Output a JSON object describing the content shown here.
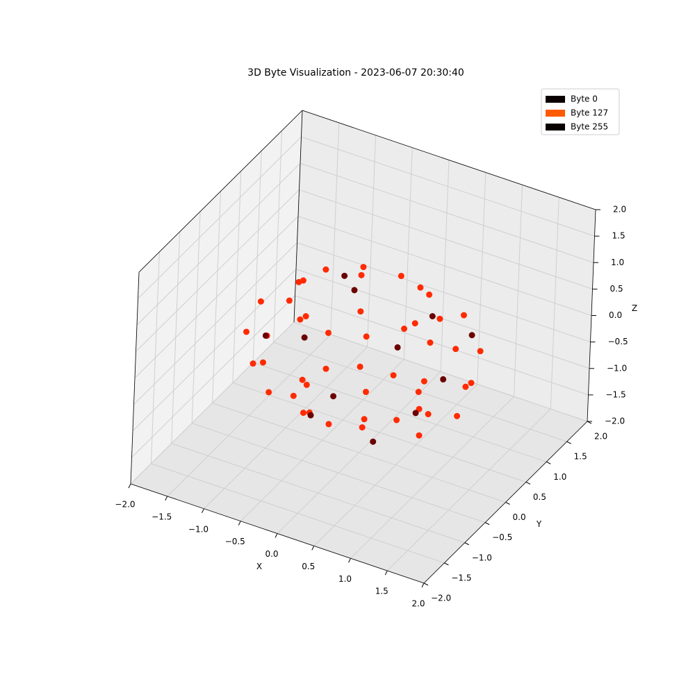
{
  "chart_data": {
    "type": "scatter3d",
    "title": "3D Byte Visualization - 2023-06-07 20:30:40",
    "x_label": "X",
    "y_label": "Y",
    "z_label": "Z",
    "xlim": [
      -2,
      2
    ],
    "ylim": [
      -2,
      2
    ],
    "zlim": [
      -2,
      2
    ],
    "xticks": [
      {
        "value": -2,
        "label": "−2.0"
      },
      {
        "value": -1.5,
        "label": "−1.5"
      },
      {
        "value": -1,
        "label": "−1.0"
      },
      {
        "value": -0.5,
        "label": "−0.5"
      },
      {
        "value": 0,
        "label": "0.0"
      },
      {
        "value": 0.5,
        "label": "0.5"
      },
      {
        "value": 1,
        "label": "1.0"
      },
      {
        "value": 1.5,
        "label": "1.5"
      },
      {
        "value": 2,
        "label": "2.0"
      }
    ],
    "yticks": [
      {
        "value": -2,
        "label": "−2.0"
      },
      {
        "value": -1.5,
        "label": "−1.5"
      },
      {
        "value": -1,
        "label": "−1.0"
      },
      {
        "value": -0.5,
        "label": "−0.5"
      },
      {
        "value": 0,
        "label": "0.0"
      },
      {
        "value": 0.5,
        "label": "0.5"
      },
      {
        "value": 1,
        "label": "1.0"
      },
      {
        "value": 1.5,
        "label": "1.5"
      },
      {
        "value": 2,
        "label": "2.0"
      }
    ],
    "zticks": [
      {
        "value": -2,
        "label": "−2.0"
      },
      {
        "value": -1.5,
        "label": "−1.5"
      },
      {
        "value": -1,
        "label": "−1.0"
      },
      {
        "value": -0.5,
        "label": "−0.5"
      },
      {
        "value": 0,
        "label": "0.0"
      },
      {
        "value": 0.5,
        "label": "0.5"
      },
      {
        "value": 1,
        "label": "1.0"
      },
      {
        "value": 1.5,
        "label": "1.5"
      },
      {
        "value": 2,
        "label": "2.0"
      }
    ],
    "grid": true,
    "legend_loc": "upper right",
    "legend": [
      {
        "label": "Byte 0",
        "color": "#0a0000"
      },
      {
        "label": "Byte 127",
        "color": "#ff5a00"
      },
      {
        "label": "Byte 255",
        "color": "#0a0000"
      }
    ],
    "groups": [
      {
        "color": "#ff2a00",
        "x": [
          0.8,
          0.7,
          0.4,
          0,
          -0.4,
          -0.7,
          -0.8,
          -0.7,
          -0.4,
          0,
          0.4,
          0.7,
          1.3,
          1.13,
          0.65,
          0,
          -0.65,
          -1.13,
          -1.3,
          -1.13,
          -0.65,
          0,
          0.65,
          1.13,
          1.4,
          1.21,
          0.7,
          0,
          -0.7,
          -1.21,
          -1.4,
          -1.21,
          -0.7,
          0,
          0.7,
          1.21,
          0.9,
          0.78,
          0.45,
          0,
          -0.45,
          -0.78,
          -0.9,
          -0.78,
          -0.45,
          0,
          0.45,
          0.78
        ],
        "y": [
          0,
          0.4,
          0.7,
          0.8,
          0.7,
          0.4,
          0,
          -0.4,
          -0.7,
          -0.8,
          -0.7,
          -0.4,
          0,
          0.65,
          1.13,
          1.3,
          1.13,
          0.65,
          0,
          -0.65,
          -1.13,
          -1.3,
          -1.13,
          -0.65,
          0,
          0.7,
          1.21,
          1.4,
          1.21,
          0.7,
          0,
          -0.7,
          -1.21,
          -1.4,
          -1.21,
          -0.7,
          0,
          0.45,
          0.78,
          0.9,
          0.78,
          0.45,
          0,
          -0.45,
          -0.78,
          -0.9,
          -0.78,
          -0.45
        ],
        "z": [
          -1.3,
          -1.25,
          -1.2,
          -1.15,
          -1.1,
          -1.05,
          -1,
          -0.95,
          -0.9,
          -0.85,
          -0.8,
          -0.75,
          -0.7,
          -0.65,
          -0.6,
          -0.55,
          -0.5,
          -0.45,
          -0.4,
          -0.35,
          -0.3,
          -0.25,
          -0.2,
          -0.15,
          -0.1,
          -0.05,
          0,
          0.05,
          0.1,
          0.15,
          0.2,
          0.25,
          0.3,
          0.35,
          0.4,
          0.45,
          0.5,
          0.55,
          0.6,
          0.65,
          0.7,
          0.75,
          0.8,
          0.85,
          0.9,
          0.95,
          1,
          1.05
        ]
      },
      {
        "color": "#6b0000",
        "x": [
          0.5,
          -0.3,
          0.9,
          -0.9,
          0.2,
          1.2,
          -1.0,
          0.6,
          -0.5,
          1.3,
          0.1,
          -0.2
        ],
        "y": [
          -0.6,
          -0.7,
          -0.3,
          0.2,
          0.5,
          -0.2,
          -0.6,
          0.6,
          0.4,
          0.3,
          -0.9,
          0.1
        ],
        "z": [
          -1.1,
          -0.9,
          -0.6,
          -0.4,
          -0.3,
          0.1,
          0.2,
          0.4,
          0.8,
          0.6,
          -0.2,
          0.9
        ]
      }
    ]
  }
}
